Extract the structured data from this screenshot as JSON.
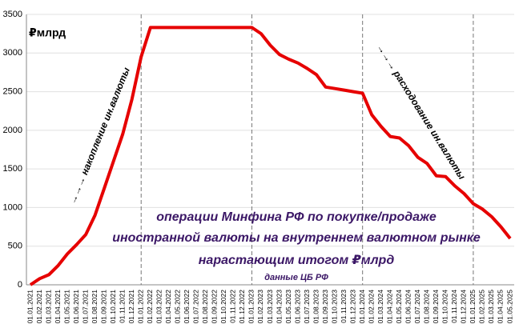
{
  "chart_data": {
    "type": "line",
    "unit_label": "₽млрд",
    "annotations": [
      "→→→ накопление ин.валюты",
      "→→→ расходование ин.валюты"
    ],
    "caption": [
      "операции Минфина РФ по покупке/продаже",
      "иностранной валюты на внутреннем валютном рынке",
      "нарастающим  итогом  ₽млрд"
    ],
    "source": "данные ЦБ РФ",
    "categories": [
      "01.01.2021",
      "01.02.2021",
      "01.03.2021",
      "01.04.2021",
      "01.05.2021",
      "01.06.2021",
      "01.07.2021",
      "01.08.2021",
      "01.09.2021",
      "01.10.2021",
      "01.11.2021",
      "01.12.2021",
      "01.01.2022",
      "01.02.2022",
      "01.03.2022",
      "01.04.2022",
      "01.05.2022",
      "01.06.2022",
      "01.07.2022",
      "01.08.2022",
      "01.09.2022",
      "01.10.2022",
      "01.11.2022",
      "01.12.2022",
      "01.01.2023",
      "01.02.2023",
      "01.03.2023",
      "01.04.2023",
      "01.05.2023",
      "01.06.2023",
      "01.07.2023",
      "01.08.2023",
      "01.09.2023",
      "01.10.2023",
      "01.11.2023",
      "01.12.2023",
      "01.01.2024",
      "01.02.2024",
      "01.03.2024",
      "01.04.2024",
      "01.05.2024",
      "01.06.2024",
      "01.07.2024",
      "01.08.2024",
      "01.09.2024",
      "01.10.2024",
      "01.11.2024",
      "01.12.2024",
      "01.01.2025",
      "01.02.2025",
      "01.03.2025",
      "01.04.2025",
      "01.05.2025"
    ],
    "series": [
      {
        "name": "операции Минфина РФ",
        "color": "#e60000",
        "values": [
          0,
          80,
          130,
          250,
          400,
          520,
          650,
          900,
          1250,
          1600,
          1950,
          2400,
          2950,
          3330,
          3330,
          3330,
          3330,
          3330,
          3330,
          3330,
          3330,
          3330,
          3330,
          3330,
          3330,
          3250,
          3100,
          2980,
          2920,
          2870,
          2800,
          2720,
          2560,
          2540,
          2520,
          2500,
          2480,
          2200,
          2050,
          1920,
          1900,
          1800,
          1650,
          1570,
          1410,
          1400,
          1280,
          1180,
          1050,
          980,
          880,
          750,
          600
        ]
      }
    ],
    "ylim": [
      0,
      3500
    ],
    "yticks": [
      0,
      500,
      1000,
      1500,
      2000,
      2500,
      3000,
      3500
    ],
    "grid": true
  }
}
